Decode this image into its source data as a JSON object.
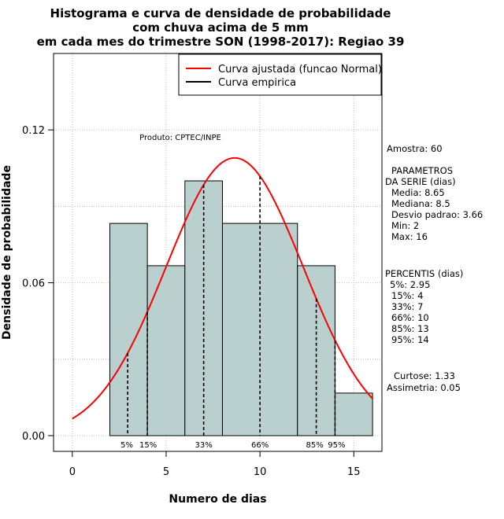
{
  "chart_data": {
    "type": "histogram",
    "title_lines": [
      "Histograma e curva de densidade de probabilidade",
      "com chuva acima de 5 mm",
      "em cada mes do trimestre SON (1998-2017): Regiao 39"
    ],
    "xlabel": "Numero de dias",
    "ylabel": "Densidade de probabilidade",
    "xlim": [
      -1,
      16.5
    ],
    "ylim": [
      0,
      0.15
    ],
    "x_ticks": [
      0,
      5,
      10,
      15
    ],
    "y_ticks": [
      0.0,
      0.06,
      0.12
    ],
    "y_tick_labels": [
      "0.00",
      "0.06",
      "0.12"
    ],
    "grid": true,
    "bins": [
      {
        "start": 2,
        "end": 4,
        "density": 0.0833
      },
      {
        "start": 4,
        "end": 6,
        "density": 0.0667
      },
      {
        "start": 6,
        "end": 8,
        "density": 0.1
      },
      {
        "start": 8,
        "end": 12,
        "density": 0.0833
      },
      {
        "start": 12,
        "end": 14,
        "density": 0.0667
      },
      {
        "start": 14,
        "end": 16,
        "density": 0.0167
      }
    ],
    "bar_color": "#b9d0cf",
    "normal_curve": {
      "label": "Curva ajustada (funcao Normal)",
      "mean": 8.65,
      "sd": 3.66,
      "x_range": [
        0,
        16
      ],
      "color": "#ff0000"
    },
    "empirical_curve": {
      "label": "Curva empirica",
      "color": "#000000"
    },
    "legend_position": "top-right",
    "annotation": "Produto: CPTEC/INPE",
    "percentile_markers": [
      {
        "label": "5%",
        "value": 2.95
      },
      {
        "label": "15%",
        "value": 4
      },
      {
        "label": "33%",
        "value": 7
      },
      {
        "label": "66%",
        "value": 10
      },
      {
        "label": "85%",
        "value": 13
      },
      {
        "label": "95%",
        "value": 14
      }
    ]
  },
  "stats": {
    "amostra": "Amostra: 60",
    "parametros_title": "PARAMETROS",
    "parametros_sub": "DA SERIE (dias)",
    "media": "Media: 8.65",
    "mediana": "Mediana: 8.5",
    "desvio": "Desvio padrao: 3.66",
    "min": "Min: 2",
    "max": "Max: 16",
    "percentis_title": "PERCENTIS (dias)",
    "p5": "5%: 2.95",
    "p15": "15%: 4",
    "p33": "33%: 7",
    "p66": "66%: 10",
    "p85": "85%: 13",
    "p95": "95%: 14",
    "curtose": "Curtose: 1.33",
    "assimetria": "Assimetria: 0.05"
  }
}
